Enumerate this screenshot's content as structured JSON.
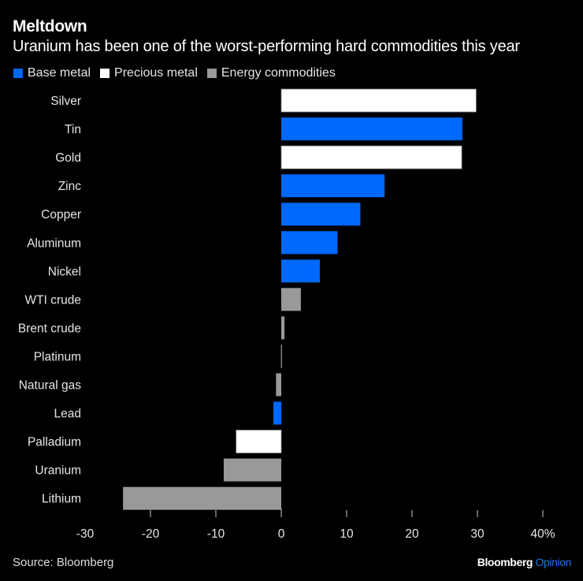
{
  "header": {
    "title": "Meltdown",
    "subtitle": "Uranium has been one of the worst-performing hard commodities this year"
  },
  "legend": [
    {
      "label": "Base metal",
      "color": "#0068ff"
    },
    {
      "label": "Precious metal",
      "color": "#ffffff"
    },
    {
      "label": "Energy commodities",
      "color": "#999999"
    }
  ],
  "footer": {
    "source": "Source: Bloomberg",
    "brand_main": "Bloomberg",
    "brand_accent": "Opinion"
  },
  "chart_data": {
    "type": "bar",
    "orientation": "horizontal",
    "title": "Meltdown",
    "subtitle": "Uranium has been one of the worst-performing hard commodities this year",
    "xlabel": "",
    "ylabel": "",
    "unit": "%",
    "xlim": [
      -30,
      40
    ],
    "xticks": [
      -30,
      -20,
      -10,
      0,
      10,
      20,
      30,
      40
    ],
    "xtick_labels": [
      "-30",
      "-20",
      "-10",
      "0",
      "10",
      "20",
      "30",
      "40%"
    ],
    "grid": false,
    "legend_position": "top-left",
    "categories": [
      "Silver",
      "Tin",
      "Gold",
      "Zinc",
      "Copper",
      "Aluminum",
      "Nickel",
      "WTI crude",
      "Brent crude",
      "Platinum",
      "Natural gas",
      "Lead",
      "Palladium",
      "Uranium",
      "Lithium"
    ],
    "values": [
      29.8,
      27.7,
      27.6,
      15.8,
      12.1,
      8.6,
      5.9,
      3.0,
      0.5,
      0.0,
      -0.8,
      -1.2,
      -6.9,
      -8.8,
      -24.2
    ],
    "groups": [
      "Precious metal",
      "Base metal",
      "Precious metal",
      "Base metal",
      "Base metal",
      "Base metal",
      "Base metal",
      "Energy commodities",
      "Energy commodities",
      "Precious metal",
      "Energy commodities",
      "Base metal",
      "Precious metal",
      "Energy commodities",
      "Energy commodities"
    ],
    "group_colors": {
      "Base metal": "#0068ff",
      "Precious metal": "#ffffff",
      "Energy commodities": "#999999"
    },
    "source": "Source: Bloomberg"
  }
}
